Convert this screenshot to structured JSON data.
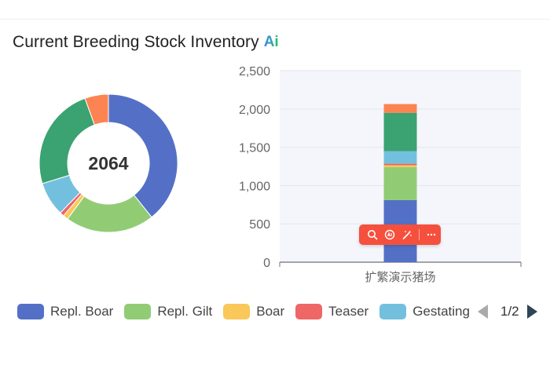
{
  "card": {
    "title": "Current Breeding Stock Inventory",
    "ai_badge": "Ai"
  },
  "donut": {
    "center_value": "2064"
  },
  "legend": {
    "items": [
      {
        "label": "Repl. Boar",
        "color": "#5470c6"
      },
      {
        "label": "Repl. Gilt",
        "color": "#91cc75"
      },
      {
        "label": "Boar",
        "color": "#fac858"
      },
      {
        "label": "Teaser",
        "color": "#ee6666"
      },
      {
        "label": "Gestating",
        "color": "#73c0de"
      }
    ],
    "page_indicator": "1/2"
  },
  "toolbar": {
    "icons": [
      "search-icon",
      "ai-icon",
      "magic-wand-icon",
      "more-icon"
    ]
  },
  "chart_data": [
    {
      "type": "pie",
      "variant": "donut",
      "total": 2064,
      "slices": [
        {
          "name": "Repl. Boar",
          "value": 810,
          "color": "#5470c6"
        },
        {
          "name": "Repl. Gilt",
          "value": 430,
          "color": "#91cc75"
        },
        {
          "name": "Boar",
          "value": 25,
          "color": "#fac858"
        },
        {
          "name": "Teaser",
          "value": 20,
          "color": "#ee6666"
        },
        {
          "name": "Gestating",
          "value": 165,
          "color": "#73c0de"
        },
        {
          "name": "",
          "value": 500,
          "color": "#3ba272"
        },
        {
          "name": "",
          "value": 114,
          "color": "#fc8452"
        }
      ]
    },
    {
      "type": "bar",
      "stacked": true,
      "categories": [
        "扩繁演示猪场"
      ],
      "ylim": [
        0,
        2500
      ],
      "yticks": [
        "0",
        "500",
        "1,000",
        "1,500",
        "2,000",
        "2,500"
      ],
      "grid": true,
      "series": [
        {
          "name": "Repl. Boar",
          "values": [
            810
          ],
          "color": "#5470c6"
        },
        {
          "name": "Repl. Gilt",
          "values": [
            430
          ],
          "color": "#91cc75"
        },
        {
          "name": "Boar",
          "values": [
            25
          ],
          "color": "#fac858"
        },
        {
          "name": "Teaser",
          "values": [
            20
          ],
          "color": "#ee6666"
        },
        {
          "name": "Gestating",
          "values": [
            165
          ],
          "color": "#73c0de"
        },
        {
          "name": "",
          "values": [
            500
          ],
          "color": "#3ba272"
        },
        {
          "name": "",
          "values": [
            114
          ],
          "color": "#fc8452"
        }
      ]
    }
  ]
}
